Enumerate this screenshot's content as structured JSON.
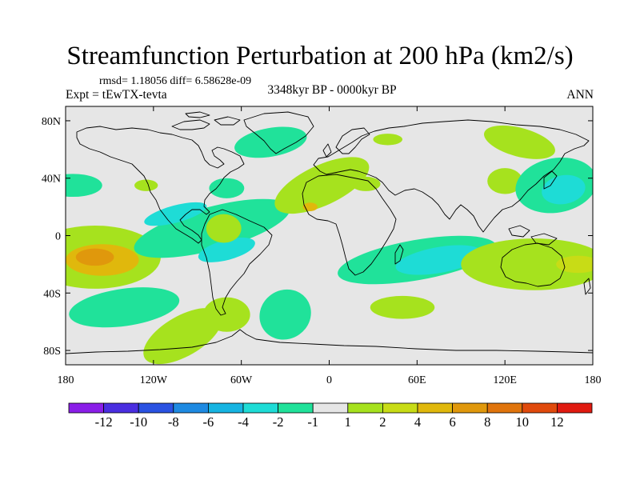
{
  "header": {
    "title": "Streamfunction Perturbation at 200 hPa (km2/s)",
    "stats": "rmsd= 1.18056 diff= 6.58628e-09",
    "experiment": "Expt = tEwTX-tevta",
    "period": "3348kyr BP - 0000kyr BP",
    "season": "ANN"
  },
  "axes": {
    "lon_range": [
      -180,
      180
    ],
    "lat_range": [
      -90,
      90
    ],
    "lat_ticks": [
      {
        "label": "80N",
        "lat": 80
      },
      {
        "label": "40N",
        "lat": 40
      },
      {
        "label": "0",
        "lat": 0
      },
      {
        "label": "40S",
        "lat": -40
      },
      {
        "label": "80S",
        "lat": -80
      }
    ],
    "lon_ticks": [
      {
        "label": "180",
        "lon": -180
      },
      {
        "label": "120W",
        "lon": -120
      },
      {
        "label": "60W",
        "lon": -60
      },
      {
        "label": "0",
        "lon": 0
      },
      {
        "label": "60E",
        "lon": 60
      },
      {
        "label": "120E",
        "lon": 120
      },
      {
        "label": "180",
        "lon": 180
      }
    ]
  },
  "colorbar": {
    "bins": [
      {
        "color": "#8a1ee8"
      },
      {
        "color": "#4a2ee0"
      },
      {
        "color": "#2a52e2"
      },
      {
        "color": "#1e8ae2"
      },
      {
        "color": "#16b4e2"
      },
      {
        "color": "#1edcd6"
      },
      {
        "color": "#20e29a"
      },
      {
        "color": "#e6e6e6"
      },
      {
        "color": "#a6e21e"
      },
      {
        "color": "#c8dc16"
      },
      {
        "color": "#e0b80c"
      },
      {
        "color": "#e0980c"
      },
      {
        "color": "#e0740c"
      },
      {
        "color": "#e04a0c"
      },
      {
        "color": "#e01a10"
      }
    ],
    "tick_labels": [
      "-12",
      "-10",
      "-8",
      "-6",
      "-4",
      "-2",
      "-1",
      "1",
      "2",
      "4",
      "6",
      "8",
      "10",
      "12"
    ]
  },
  "anomalies": [
    {
      "lon": -160,
      "lat": -15,
      "rx": 45,
      "ry": 22,
      "rot": 0,
      "level": 1,
      "name": "cp"
    },
    {
      "lon": -155,
      "lat": -17,
      "rx": 25,
      "ry": 11,
      "rot": 0,
      "level": 3,
      "name": "cp"
    },
    {
      "lon": -160,
      "lat": -15,
      "rx": 13,
      "ry": 6,
      "rot": 0,
      "level": 4,
      "name": "cp"
    },
    {
      "lon": -140,
      "lat": -50,
      "rx": 38,
      "ry": 13,
      "rot": -8,
      "level": -1,
      "name": "sp"
    },
    {
      "lon": -175,
      "lat": 35,
      "rx": 20,
      "ry": 8,
      "rot": 0,
      "level": -1,
      "name": "np"
    },
    {
      "lon": -80,
      "lat": 5,
      "rx": 55,
      "ry": 15,
      "rot": -15,
      "level": -1,
      "name": "eq"
    },
    {
      "lon": -105,
      "lat": 15,
      "rx": 22,
      "ry": 6,
      "rot": -15,
      "level": -2,
      "name": "eq"
    },
    {
      "lon": -70,
      "lat": -10,
      "rx": 20,
      "ry": 7,
      "rot": -15,
      "level": -2,
      "name": "eq"
    },
    {
      "lon": -72,
      "lat": 5,
      "rx": 12,
      "ry": 10,
      "rot": 0,
      "level": 1,
      "name": "sa"
    },
    {
      "lon": -100,
      "lat": -70,
      "rx": 30,
      "ry": 14,
      "rot": -30,
      "level": 1,
      "name": "ss"
    },
    {
      "lon": -70,
      "lat": -55,
      "rx": 16,
      "ry": 12,
      "rot": 0,
      "level": 1,
      "name": "ss"
    },
    {
      "lon": -30,
      "lat": -55,
      "rx": 18,
      "ry": 17,
      "rot": -35,
      "level": -1,
      "name": "sa2"
    },
    {
      "lon": -70,
      "lat": 33,
      "rx": 12,
      "ry": 7,
      "rot": 0,
      "level": -1,
      "name": "us"
    },
    {
      "lon": -40,
      "lat": 65,
      "rx": 25,
      "ry": 10,
      "rot": -10,
      "level": -1,
      "name": "gl"
    },
    {
      "lon": 40,
      "lat": 67,
      "rx": 10,
      "ry": 4,
      "rot": 0,
      "level": 1,
      "name": "eu"
    },
    {
      "lon": -5,
      "lat": 35,
      "rx": 35,
      "ry": 14,
      "rot": -25,
      "level": 1,
      "name": "na"
    },
    {
      "lon": 25,
      "lat": 36,
      "rx": 10,
      "ry": 5,
      "rot": 0,
      "level": 1,
      "name": "na"
    },
    {
      "lon": 130,
      "lat": 65,
      "rx": 25,
      "ry": 10,
      "rot": 15,
      "level": 1,
      "name": "sib"
    },
    {
      "lon": 120,
      "lat": 38,
      "rx": 12,
      "ry": 9,
      "rot": 0,
      "level": 1,
      "name": "asia"
    },
    {
      "lon": 155,
      "lat": 35,
      "rx": 28,
      "ry": 19,
      "rot": -10,
      "level": -1,
      "name": "wnp"
    },
    {
      "lon": 160,
      "lat": 32,
      "rx": 15,
      "ry": 10,
      "rot": -10,
      "level": -2,
      "name": "wnp"
    },
    {
      "lon": 60,
      "lat": -17,
      "rx": 55,
      "ry": 14,
      "rot": -10,
      "level": -1,
      "name": "io"
    },
    {
      "lon": 75,
      "lat": -17,
      "rx": 30,
      "ry": 9,
      "rot": -10,
      "level": -2,
      "name": "io"
    },
    {
      "lon": 50,
      "lat": -50,
      "rx": 22,
      "ry": 8,
      "rot": 0,
      "level": 1,
      "name": "so"
    },
    {
      "lon": 140,
      "lat": -20,
      "rx": 50,
      "ry": 18,
      "rot": 0,
      "level": 1,
      "name": "aus"
    },
    {
      "lon": 170,
      "lat": -20,
      "rx": 15,
      "ry": 6,
      "rot": 0,
      "level": 2,
      "name": "aus"
    },
    {
      "lon": -125,
      "lat": 35,
      "rx": 8,
      "ry": 4,
      "rot": 0,
      "level": 1,
      "name": "us"
    },
    {
      "lon": -13,
      "lat": 20,
      "rx": 5,
      "ry": 3,
      "rot": 0,
      "level": 3,
      "name": "na"
    }
  ]
}
